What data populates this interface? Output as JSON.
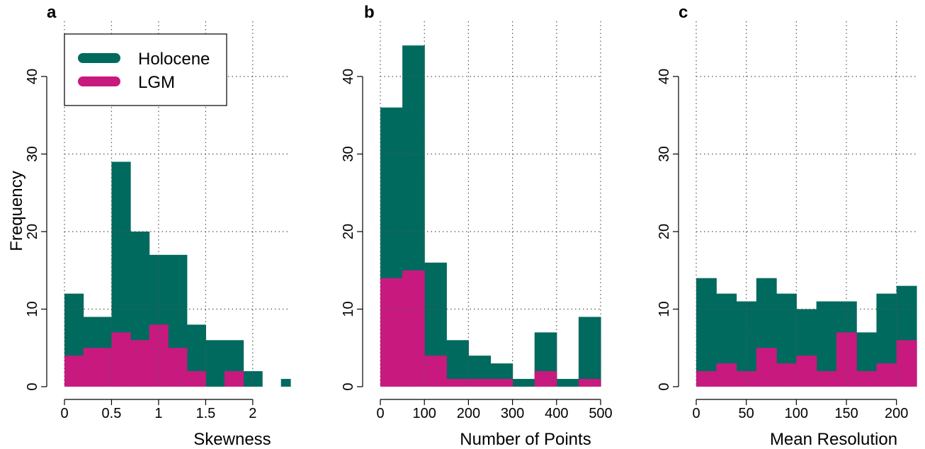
{
  "figure": {
    "ylabel": "Frequency",
    "colors": {
      "holocene": "#006a5e",
      "lgm": "#c8197f",
      "grid": "#555555",
      "axis": "#000000"
    }
  },
  "legend": {
    "placement": "top-left of panel a",
    "items": [
      {
        "label": "Holocene",
        "color": "#006a5e"
      },
      {
        "label": "LGM",
        "color": "#c8197f"
      }
    ]
  },
  "chart_data": [
    {
      "type": "bar",
      "panel": "a",
      "xlabel": "Skewness",
      "xlim": [
        0,
        2.4
      ],
      "ylim": [
        0,
        45
      ],
      "xticks": [
        0,
        0.5,
        1,
        1.5,
        2
      ],
      "xtick_labels": [
        "0",
        "0.5",
        "1",
        "1.5",
        "2"
      ],
      "yticks": [
        0,
        10,
        20,
        30,
        40
      ],
      "ytick_labels": [
        "0",
        "10",
        "20",
        "30",
        "40"
      ],
      "grid": true,
      "bin_edges": [
        0,
        0.1,
        0.2,
        0.3,
        0.4,
        0.5,
        0.6,
        0.7,
        0.8,
        0.9,
        1.0,
        1.1,
        1.2,
        1.3,
        1.4,
        1.5,
        1.6,
        1.7,
        1.8,
        1.9,
        2.0,
        2.1,
        2.2,
        2.3,
        2.4
      ],
      "series": [
        {
          "name": "Holocene",
          "values": [
            12,
            12,
            9,
            9,
            9,
            29,
            29,
            20,
            20,
            17,
            17,
            17,
            17,
            8,
            8,
            6,
            6,
            6,
            6,
            2,
            2,
            0,
            0,
            1
          ]
        },
        {
          "name": "LGM",
          "values": [
            4,
            4,
            5,
            5,
            5,
            7,
            7,
            6,
            6,
            8,
            8,
            5,
            5,
            2,
            2,
            0,
            0,
            2,
            2,
            0,
            0,
            0,
            0,
            0
          ]
        }
      ]
    },
    {
      "type": "bar",
      "panel": "b",
      "xlabel": "Number of Points",
      "xlim": [
        0,
        500
      ],
      "ylim": [
        0,
        45
      ],
      "xticks": [
        0,
        100,
        200,
        300,
        400,
        500
      ],
      "xtick_labels": [
        "0",
        "100",
        "200",
        "300",
        "400",
        "500"
      ],
      "yticks": [
        0,
        10,
        20,
        30,
        40
      ],
      "ytick_labels": [
        "0",
        "10",
        "20",
        "30",
        "40"
      ],
      "grid": true,
      "bin_edges": [
        0,
        50,
        100,
        150,
        200,
        250,
        300,
        350,
        400,
        450,
        500
      ],
      "series": [
        {
          "name": "Holocene",
          "values": [
            36,
            44,
            16,
            6,
            4,
            3,
            1,
            7,
            1,
            9
          ]
        },
        {
          "name": "LGM",
          "values": [
            14,
            15,
            4,
            1,
            1,
            1,
            0,
            2,
            0,
            1
          ]
        }
      ]
    },
    {
      "type": "bar",
      "panel": "c",
      "xlabel": "Mean Resolution",
      "xlim": [
        0,
        220
      ],
      "ylim": [
        0,
        45
      ],
      "xticks": [
        0,
        50,
        100,
        150,
        200
      ],
      "xtick_labels": [
        "0",
        "50",
        "100",
        "150",
        "200"
      ],
      "yticks": [
        0,
        10,
        20,
        30,
        40
      ],
      "ytick_labels": [
        "0",
        "10",
        "20",
        "30",
        "40"
      ],
      "grid": true,
      "bin_edges": [
        0,
        20,
        40,
        60,
        80,
        100,
        120,
        140,
        160,
        180,
        200,
        220
      ],
      "series": [
        {
          "name": "Holocene",
          "values": [
            14,
            12,
            11,
            14,
            12,
            10,
            11,
            11,
            7,
            12,
            13
          ]
        },
        {
          "name": "LGM",
          "values": [
            2,
            3,
            2,
            5,
            3,
            4,
            2,
            7,
            2,
            3,
            6
          ]
        }
      ]
    }
  ]
}
